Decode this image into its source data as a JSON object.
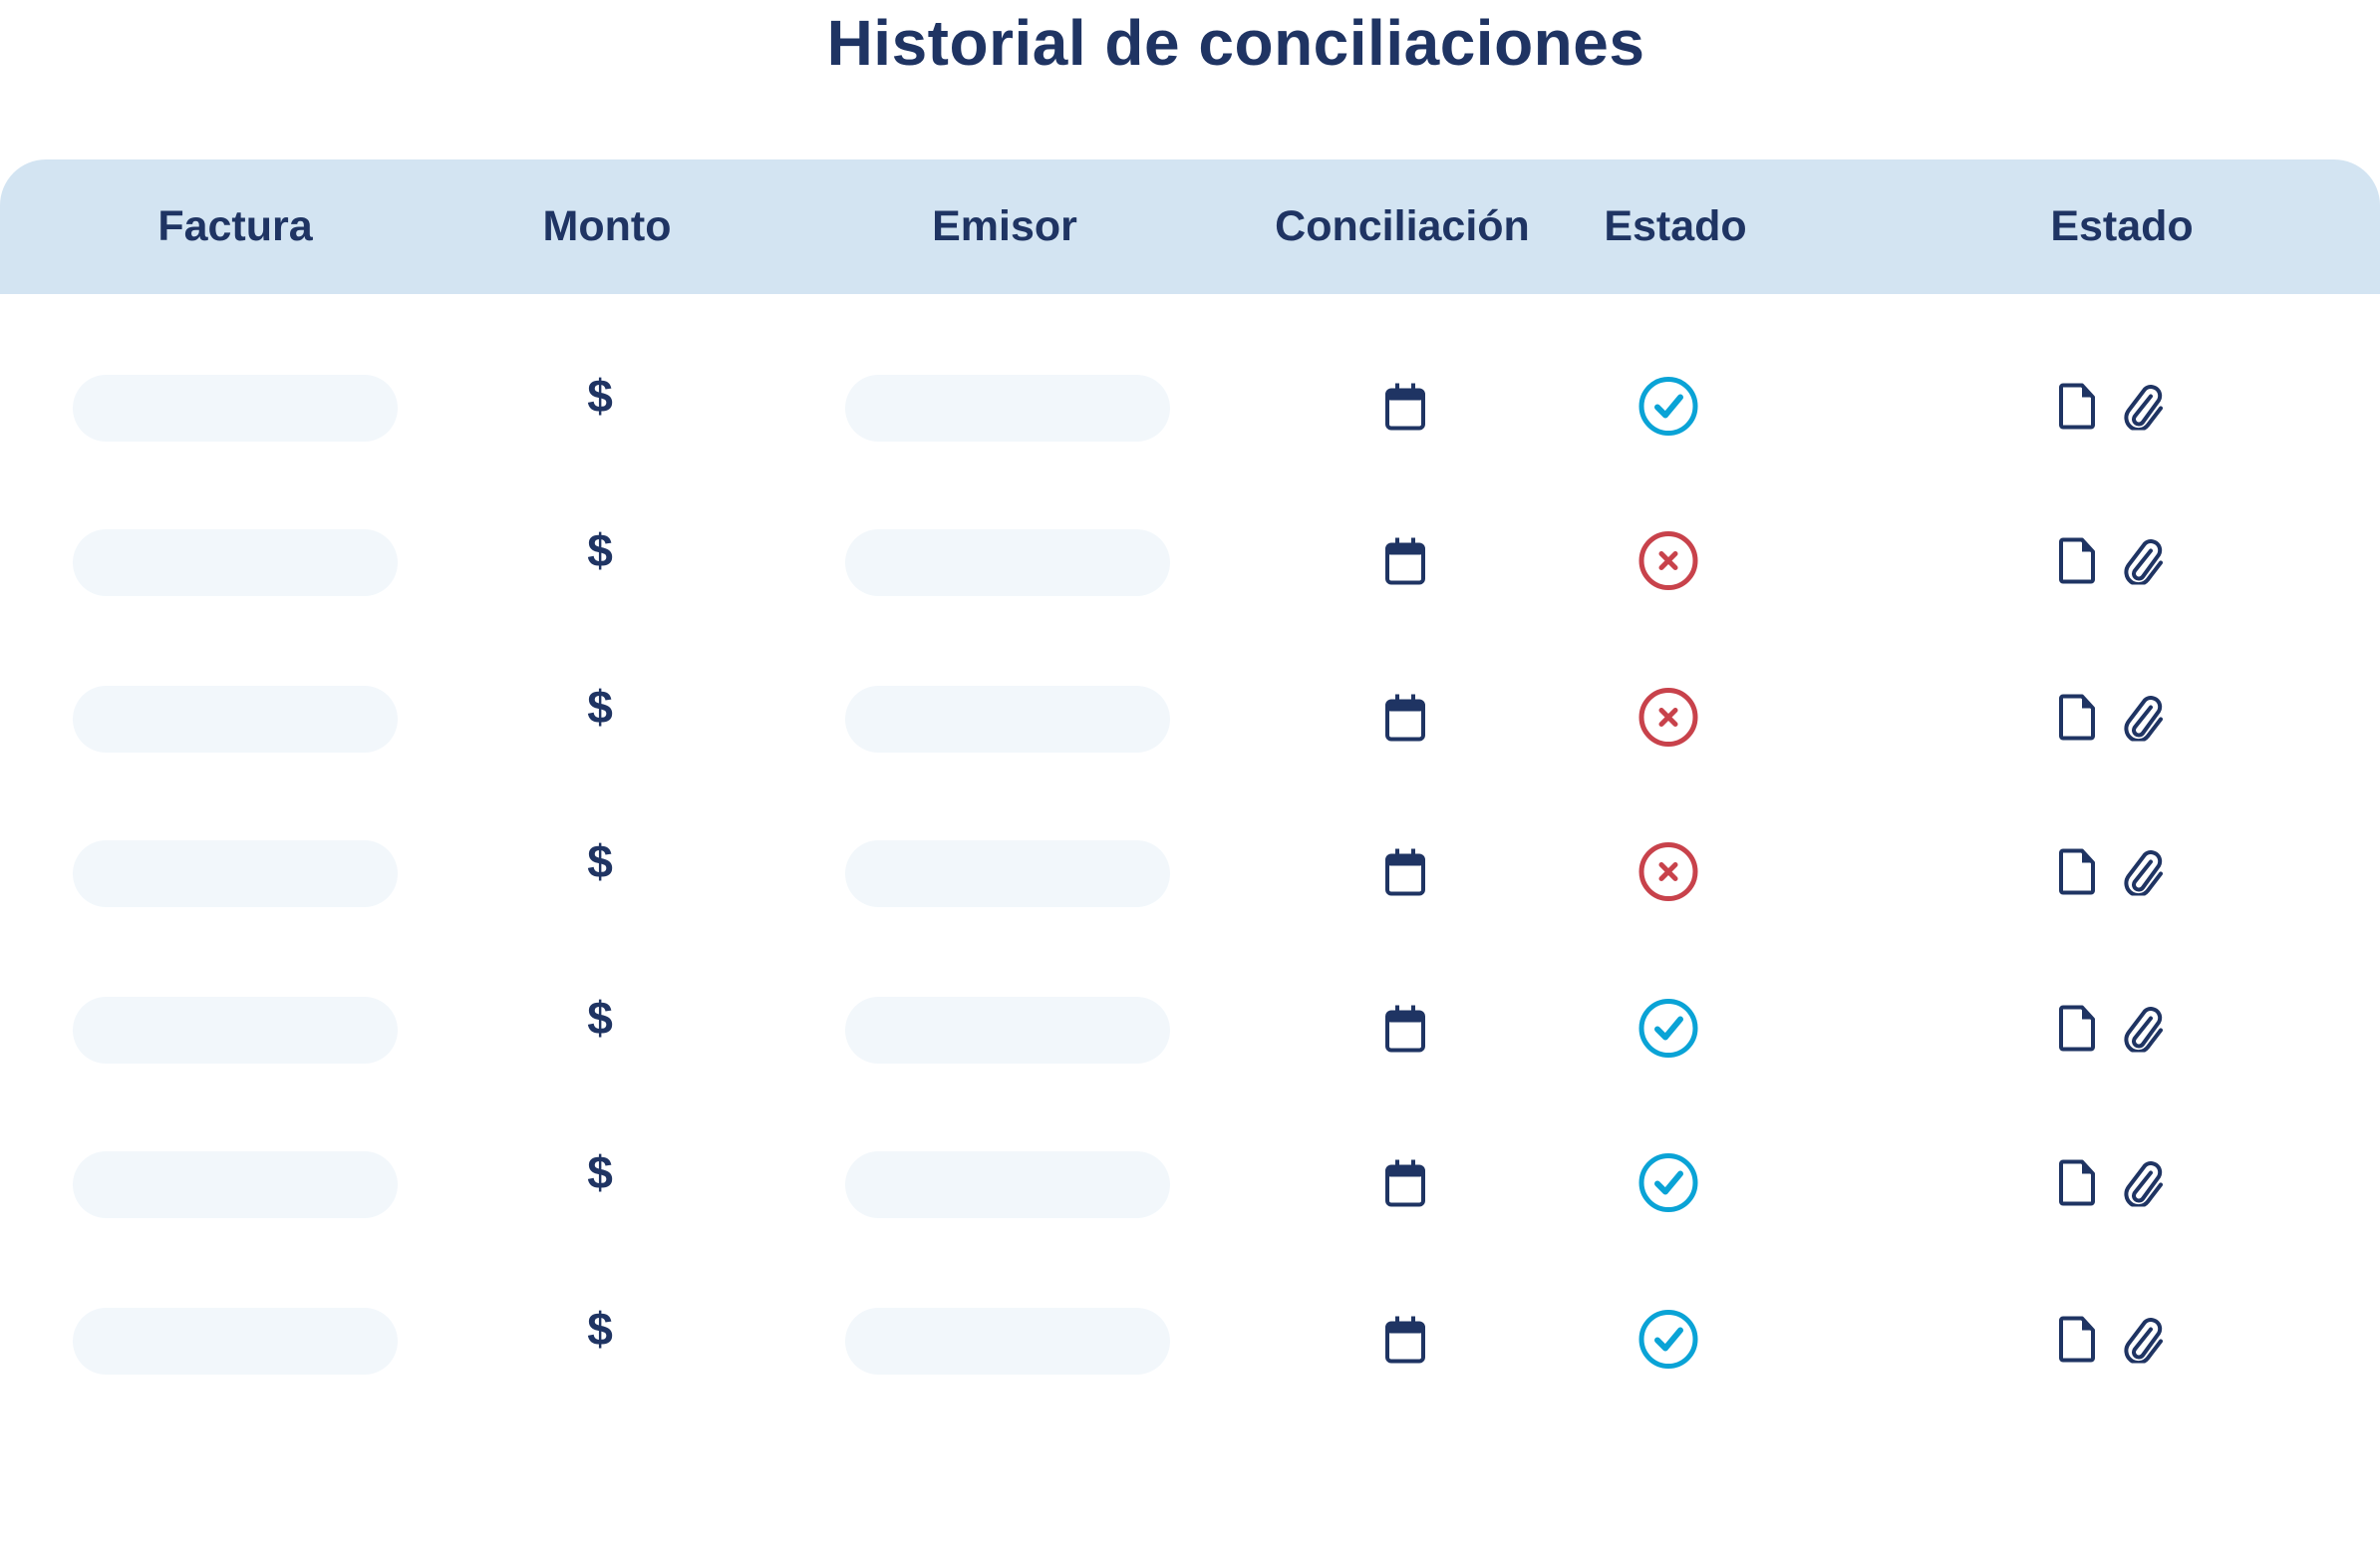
{
  "title": "Historial de conciliaciones",
  "columns": [
    "Factura",
    "Monto",
    "Emisor",
    "Conciliación",
    "Estado",
    "Estado"
  ],
  "currency_symbol": "$",
  "colors": {
    "text": "#1f3463",
    "header_bg": "#d3e4f2",
    "placeholder": "#f2f7fb",
    "success": "#0aa3d6",
    "error": "#c8424b"
  },
  "rows": [
    {
      "status": "success",
      "icons": [
        "calendar-icon",
        "check-circle-icon",
        "document-icon",
        "paperclip-icon"
      ]
    },
    {
      "status": "error",
      "icons": [
        "calendar-icon",
        "x-circle-icon",
        "document-icon",
        "paperclip-icon"
      ]
    },
    {
      "status": "error",
      "icons": [
        "calendar-icon",
        "x-circle-icon",
        "document-icon",
        "paperclip-icon"
      ]
    },
    {
      "status": "error",
      "icons": [
        "calendar-icon",
        "x-circle-icon",
        "document-icon",
        "paperclip-icon"
      ]
    },
    {
      "status": "success",
      "icons": [
        "calendar-icon",
        "check-circle-icon",
        "document-icon",
        "paperclip-icon"
      ]
    },
    {
      "status": "success",
      "icons": [
        "calendar-icon",
        "check-circle-icon",
        "document-icon",
        "paperclip-icon"
      ]
    },
    {
      "status": "success",
      "icons": [
        "calendar-icon",
        "check-circle-icon",
        "document-icon",
        "paperclip-icon"
      ]
    }
  ]
}
